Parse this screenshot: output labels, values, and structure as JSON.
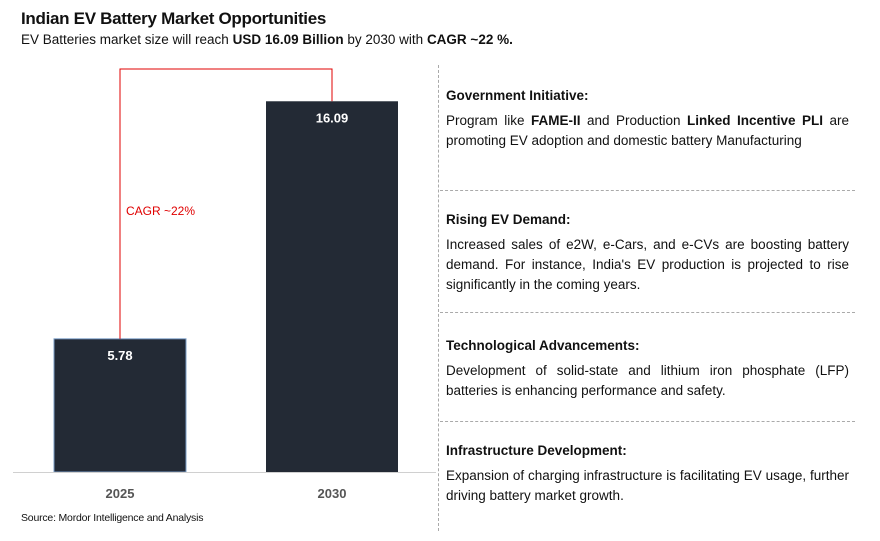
{
  "header": {
    "title": "Indian EV Battery Market Opportunities",
    "subtitle_parts": [
      "EV Batteries market  size will reach ",
      "USD 16.09  Billion",
      " by 2030 with ",
      "CAGR ~22 %."
    ]
  },
  "chart_data": {
    "type": "bar",
    "categories": [
      "2025",
      "2030"
    ],
    "values": [
      5.78,
      16.09
    ],
    "value_labels": [
      "5.78",
      "16.09"
    ],
    "ylim": [
      0,
      17.1
    ],
    "bar_color": "#232a35",
    "annotation": {
      "text": "CAGR ~22%",
      "color": "#e00000"
    },
    "grid": false
  },
  "source": "Source: Mordor Intelligence and Analysis",
  "sections": [
    {
      "heading": "Government Initiative:",
      "body": [
        "Program like ",
        "FAME-II",
        " and Production ",
        "Linked Incentive PLI",
        " are promoting EV adoption and domestic battery Manufacturing"
      ]
    },
    {
      "heading": "Rising EV Demand:",
      "body": "Increased sales of e2W, e-Cars, and e-CVs are boosting battery demand. For instance, India's EV production is projected to rise significantly in the coming years."
    },
    {
      "heading": "Technological Advancements:",
      "body": "Development of solid-state and lithium iron phosphate (LFP) batteries is enhancing performance and safety."
    },
    {
      "heading": "Infrastructure Development:",
      "body": "Expansion of charging infrastructure is facilitating EV usage, further driving battery market growth."
    }
  ]
}
